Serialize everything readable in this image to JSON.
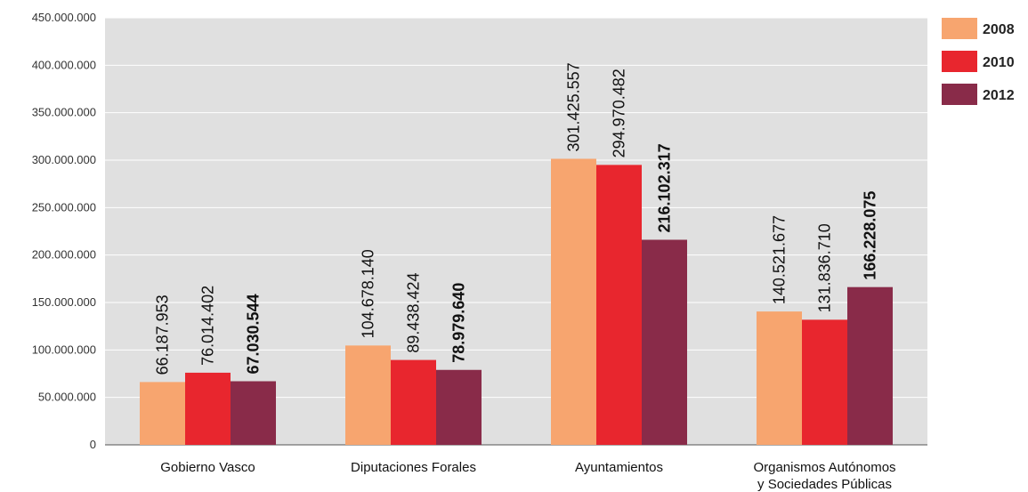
{
  "chart_data": {
    "type": "bar",
    "categories": [
      [
        "Gobierno Vasco"
      ],
      [
        "Diputaciones Forales"
      ],
      [
        "Ayuntamientos"
      ],
      [
        "Organismos Autónomos",
        "y Sociedades Públicas"
      ]
    ],
    "series": [
      {
        "name": "2008",
        "color": "#F7A56F",
        "values": [
          66187953,
          104678140,
          301425557,
          140521677
        ],
        "labels": [
          "66.187.953",
          "104.678.140",
          "301.425.557",
          "140.521.677"
        ]
      },
      {
        "name": "2010",
        "color": "#E8262E",
        "values": [
          76014402,
          89438424,
          294970482,
          131836710
        ],
        "labels": [
          "76.014.402",
          "89.438.424",
          "294.970.482",
          "131.836.710"
        ]
      },
      {
        "name": "2012",
        "color": "#892B49",
        "values": [
          67030544,
          78979640,
          216102317,
          166228075
        ],
        "labels": [
          "67.030.544",
          "78.979.640",
          "216.102.317",
          "166.228.075"
        ]
      }
    ],
    "bold_series": "2012",
    "ylim": [
      0,
      450000000
    ],
    "yticks": [
      0,
      50000000,
      100000000,
      150000000,
      200000000,
      250000000,
      300000000,
      350000000,
      400000000,
      450000000
    ],
    "ytick_labels": [
      "0",
      "50.000.000",
      "100.000.000",
      "150.000.000",
      "200.000.000",
      "250.000.000",
      "300.000.000",
      "350.000.000",
      "400.000.000",
      "450.000.000"
    ],
    "grid": true,
    "legend": "top-right",
    "plot_background": "#E0E0E0",
    "title": "",
    "xlabel": "",
    "ylabel": ""
  }
}
